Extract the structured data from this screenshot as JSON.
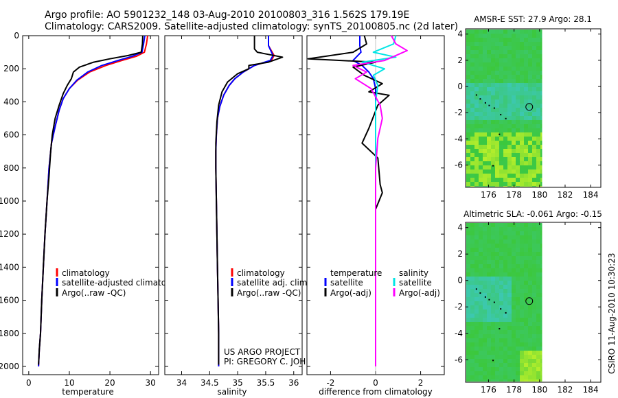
{
  "header": {
    "title_line1": "Argo profile: AO 5901232_148 03-Aug-2010 20100803_316 1.562S 179.19E",
    "title_line2": "Climatology: CARS2009. Satellite-adjusted climatology: synTS_20100805.nc (2d later)"
  },
  "footer": {
    "project": "US ARGO PROJECT",
    "pi": "PI: GREGORY C. JOHNSON",
    "stamp": "CSIRO 11-Aug-2010 10:30:23"
  },
  "colors": {
    "climatology": "#ff0000",
    "satellite": "#0000ff",
    "argo": "#000000",
    "salt_satellite": "#00e5e5",
    "salt_argo": "#ff00ff",
    "map_green": "#3cc83c",
    "map_cyan": "#3cc8b0",
    "map_yellow": "#b4ee2c"
  },
  "chart_data": [
    {
      "type": "line",
      "xlabel": "temperature",
      "xlim": [
        -1.5,
        32
      ],
      "ylim": [
        2050,
        0
      ],
      "xticks": [
        0,
        10,
        20,
        30
      ],
      "yticks": [
        0,
        200,
        400,
        600,
        800,
        1000,
        1200,
        1400,
        1600,
        1800,
        2000
      ],
      "legend": {
        "position": "lower-left",
        "entries": [
          "climatology",
          "satellite-adjusted climatology",
          "Argo(..raw -QC)"
        ]
      },
      "series": [
        {
          "name": "climatology",
          "color": "#ff0000",
          "x": [
            29.3,
            29.0,
            28.5,
            26.5,
            23,
            19,
            15,
            12,
            10,
            8.5,
            7.5,
            6.5,
            5.6,
            5.0,
            4.5,
            4.0,
            3.6,
            3.2,
            2.9,
            2.6,
            2.4
          ],
          "y": [
            0,
            50,
            100,
            125,
            150,
            180,
            220,
            270,
            320,
            380,
            450,
            550,
            650,
            800,
            1000,
            1200,
            1400,
            1600,
            1800,
            1900,
            2000
          ]
        },
        {
          "name": "satellite-adjusted climatology",
          "color": "#0000ff",
          "x": [
            28.6,
            28.3,
            27.9,
            25.5,
            22,
            18,
            14.5,
            11.8,
            10,
            8.5,
            7.5,
            6.5,
            5.6,
            5.0,
            4.5,
            4.0,
            3.6,
            3.2,
            2.9,
            2.6,
            2.4
          ],
          "y": [
            0,
            50,
            100,
            125,
            150,
            180,
            220,
            270,
            320,
            380,
            450,
            550,
            650,
            800,
            1000,
            1200,
            1400,
            1600,
            1800,
            1900,
            2000
          ]
        },
        {
          "name": "Argo(..raw -QC)",
          "color": "#000000",
          "x": [
            28.1,
            28.0,
            27.7,
            24.5,
            20.0,
            16.0,
            12.5,
            11.0,
            10.5,
            9.5,
            8.5,
            7.5,
            6.5,
            5.8,
            5.4,
            5.0,
            4.5,
            4.0,
            3.6,
            3.2,
            2.9,
            2.6,
            2.4
          ],
          "y": [
            0,
            50,
            100,
            120,
            140,
            160,
            190,
            220,
            260,
            300,
            350,
            420,
            500,
            600,
            700,
            850,
            1000,
            1200,
            1400,
            1600,
            1800,
            1900,
            1990
          ]
        }
      ]
    },
    {
      "type": "line",
      "xlabel": "salinity",
      "xlim": [
        33.7,
        36.15
      ],
      "ylim": [
        2050,
        0
      ],
      "xticks": [
        34,
        34.5,
        35,
        35.5,
        36
      ],
      "legend": {
        "position": "lower-left",
        "entries": [
          "climatology",
          "satellite adj. clim.",
          "Argo(..raw -QC)"
        ]
      },
      "series": [
        {
          "name": "climatology",
          "color": "#ff0000",
          "x": [
            35.55,
            35.55,
            35.65,
            35.6,
            35.3,
            35.1,
            34.95,
            34.85,
            34.75,
            34.68,
            34.64,
            34.62,
            34.61,
            34.61,
            34.62,
            34.63,
            34.64,
            34.65,
            34.66,
            34.66
          ],
          "y": [
            0,
            60,
            120,
            150,
            180,
            220,
            260,
            300,
            360,
            430,
            500,
            600,
            700,
            800,
            1000,
            1200,
            1400,
            1600,
            1800,
            2000
          ]
        },
        {
          "name": "satellite adj. clim.",
          "color": "#0000ff",
          "x": [
            35.55,
            35.55,
            35.63,
            35.58,
            35.3,
            35.1,
            34.95,
            34.85,
            34.75,
            34.68,
            34.64,
            34.62,
            34.61,
            34.61,
            34.62,
            34.63,
            34.64,
            34.65,
            34.66,
            34.66
          ],
          "y": [
            0,
            60,
            120,
            150,
            180,
            220,
            260,
            300,
            360,
            430,
            500,
            600,
            700,
            800,
            1000,
            1200,
            1400,
            1600,
            1800,
            2000
          ]
        },
        {
          "name": "Argo(..raw -QC)",
          "color": "#000000",
          "x": [
            35.3,
            35.3,
            35.35,
            35.8,
            35.55,
            35.2,
            35.2,
            35.0,
            34.82,
            34.72,
            34.66,
            34.63,
            34.61,
            34.61,
            34.62,
            34.63,
            34.64,
            34.65,
            34.66,
            34.66
          ],
          "y": [
            0,
            80,
            100,
            130,
            160,
            180,
            200,
            230,
            280,
            340,
            420,
            520,
            650,
            800,
            1000,
            1200,
            1400,
            1600,
            1800,
            1990
          ]
        }
      ]
    },
    {
      "type": "line",
      "xlabel": "difference from climatology",
      "xlim": [
        -3.05,
        3.05
      ],
      "ylim": [
        2050,
        0
      ],
      "xticks": [
        -2,
        0,
        2
      ],
      "legend": {
        "position": "lower-left",
        "groups": [
          {
            "heading": "temperature",
            "entries": [
              "satellite",
              "Argo(-adj)"
            ]
          },
          {
            "heading": "salinity",
            "entries": [
              "satellite",
              "Argo(-adj)"
            ]
          }
        ]
      },
      "series": [
        {
          "name": "temperature satellite",
          "color": "#0000ff",
          "x": [
            -0.7,
            -0.7,
            -0.65,
            -1.0,
            -0.6,
            -0.3,
            -0.1,
            0,
            0,
            0,
            0
          ],
          "y": [
            0,
            60,
            100,
            150,
            180,
            220,
            260,
            320,
            500,
            1000,
            2000
          ]
        },
        {
          "name": "temperature Argo(-adj)",
          "color": "#000000",
          "x": [
            -0.5,
            -0.4,
            -1.0,
            -3.0,
            0.0,
            -1.0,
            -0.5,
            0.3,
            -0.3,
            0.6,
            0.1,
            -0.3,
            -0.6,
            0.1,
            0.2,
            0.3,
            0,
            0.0
          ],
          "y": [
            0,
            50,
            100,
            140,
            160,
            190,
            240,
            290,
            340,
            360,
            420,
            560,
            650,
            740,
            900,
            950,
            1050,
            2000
          ]
        },
        {
          "name": "salinity satellite",
          "color": "#00e5e5",
          "x": [
            0.9,
            0.8,
            -0.1,
            0.9,
            -0.6,
            0.4,
            -0.1,
            0.1,
            0,
            0,
            0
          ],
          "y": [
            0,
            50,
            100,
            130,
            160,
            200,
            240,
            300,
            400,
            1000,
            2000
          ]
        },
        {
          "name": "salinity Argo(-adj)",
          "color": "#ff00ff",
          "x": [
            0.7,
            0.9,
            1.4,
            0.9,
            0.4,
            -1.0,
            -0.4,
            -0.9,
            -0.2,
            0.2,
            0.3,
            0.2,
            0.1,
            0,
            0
          ],
          "y": [
            0,
            50,
            90,
            120,
            150,
            180,
            220,
            260,
            320,
            420,
            500,
            560,
            620,
            800,
            2000
          ]
        }
      ]
    },
    {
      "type": "heatmap",
      "title": "AMSR-E SST: 27.9  Argo: 28.1",
      "xlim": [
        174.2,
        184.8
      ],
      "ylim": [
        -7.7,
        4.4
      ],
      "xticks": [
        176,
        178,
        180,
        182,
        184
      ],
      "yticks": [
        -6,
        -4,
        -2,
        0,
        2,
        4
      ],
      "data_extent_x": [
        174.2,
        180.2
      ],
      "marker": {
        "x": 179.19,
        "y": -1.56
      }
    },
    {
      "type": "heatmap",
      "title": "Altimetric SLA: -0.061  Argo: -0.15",
      "xlim": [
        174.2,
        184.8
      ],
      "ylim": [
        -7.7,
        4.4
      ],
      "xticks": [
        176,
        178,
        180,
        182,
        184
      ],
      "yticks": [
        -6,
        -4,
        -2,
        0,
        2,
        4
      ],
      "data_extent_x": [
        174.2,
        180.2
      ],
      "marker": {
        "x": 179.19,
        "y": -1.56
      }
    }
  ]
}
